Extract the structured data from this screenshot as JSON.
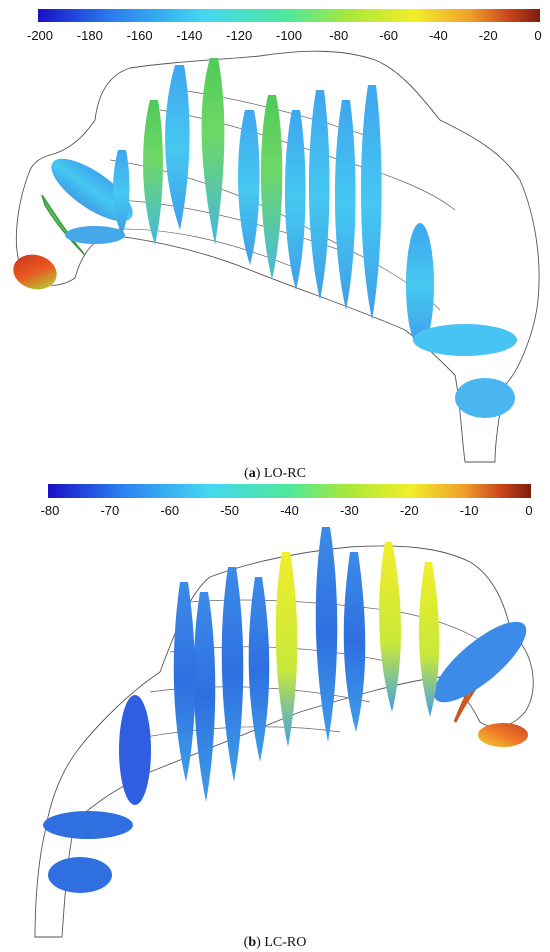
{
  "panels": [
    {
      "caption_letter": "a",
      "caption_text": "LO-RC",
      "colorbar": {
        "min": -200,
        "max": 0,
        "ticks": [
          "-200",
          "-180",
          "-160",
          "-140",
          "-120",
          "-100",
          "-80",
          "-60",
          "-40",
          "-20",
          "0"
        ]
      }
    },
    {
      "caption_letter": "b",
      "caption_text": "LC-RO",
      "colorbar": {
        "min": -80,
        "max": 0,
        "ticks": [
          "-80",
          "-70",
          "-60",
          "-50",
          "-40",
          "-30",
          "-20",
          "-10",
          "0"
        ]
      }
    }
  ],
  "colormap": [
    "#1a10c8",
    "#2a7ff0",
    "#44d7f2",
    "#4fe89a",
    "#a8e83a",
    "#f1ee2a",
    "#f0a02a",
    "#c8441c",
    "#7a1e0c"
  ]
}
